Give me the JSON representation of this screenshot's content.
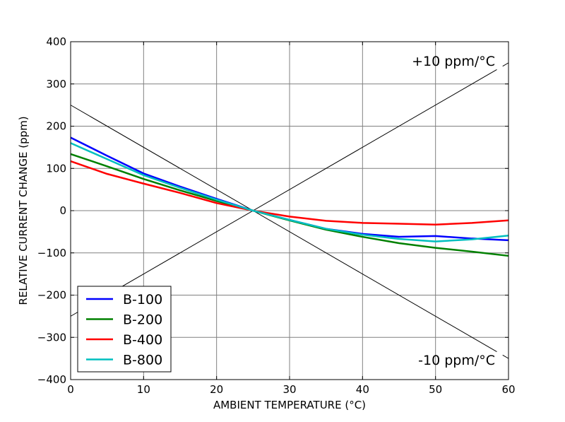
{
  "chart_data": {
    "type": "line",
    "title": "",
    "xlabel": "AMBIENT TEMPERATURE (°C)",
    "ylabel": "RELATIVE CURRENT CHANGE (ppm)",
    "xlim": [
      0,
      60
    ],
    "ylim": [
      -400,
      400
    ],
    "xticks": [
      0,
      10,
      20,
      30,
      40,
      50,
      60
    ],
    "yticks": [
      -400,
      -300,
      -200,
      -100,
      0,
      100,
      200,
      300,
      400
    ],
    "ytick_labels": [
      "−400",
      "−300",
      "−200",
      "−100",
      "0",
      "100",
      "200",
      "300",
      "400"
    ],
    "grid": true,
    "legend_placement": "lower-left",
    "x": [
      0,
      5,
      10,
      15,
      20,
      25,
      30,
      35,
      40,
      45,
      50,
      55,
      60
    ],
    "series": [
      {
        "name": "B-100",
        "color": "#0000ff",
        "values": [
          173,
          130,
          88,
          57,
          28,
          0,
          -22,
          -43,
          -55,
          -62,
          -60,
          -66,
          -70
        ]
      },
      {
        "name": "B-200",
        "color": "#008000",
        "values": [
          134,
          105,
          75,
          48,
          23,
          0,
          -23,
          -45,
          -62,
          -77,
          -88,
          -97,
          -107
        ]
      },
      {
        "name": "B-400",
        "color": "#ff0000",
        "values": [
          117,
          87,
          64,
          42,
          18,
          0,
          -14,
          -24,
          -29,
          -31,
          -33,
          -29,
          -23
        ]
      },
      {
        "name": "B-800",
        "color": "#00bfbf",
        "values": [
          160,
          122,
          84,
          54,
          26,
          0,
          -22,
          -43,
          -57,
          -67,
          -73,
          -68,
          -59
        ]
      }
    ],
    "reference_lines": [
      {
        "label": "+10 ppm/°C",
        "slope": 10,
        "through": [
          25,
          0
        ],
        "color": "#000000"
      },
      {
        "label": "-10 ppm/°C",
        "slope": -10,
        "through": [
          25,
          0
        ],
        "color": "#000000"
      }
    ]
  }
}
